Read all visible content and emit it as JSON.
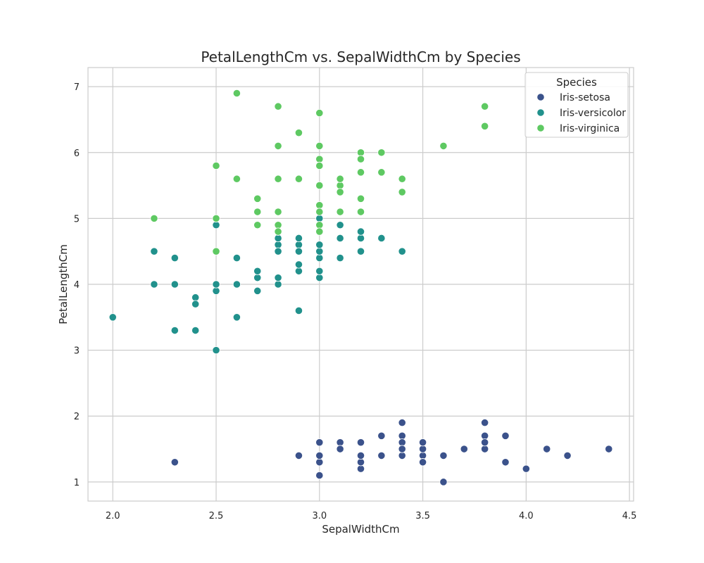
{
  "chart_data": {
    "type": "scatter",
    "title": "PetalLengthCm vs. SepalWidthCm by Species",
    "xlabel": "SepalWidthCm",
    "ylabel": "PetalLengthCm",
    "xlim": [
      1.88,
      4.52
    ],
    "ylim": [
      0.71,
      7.29
    ],
    "xticks": [
      "2.0",
      "2.5",
      "3.0",
      "3.5",
      "4.0",
      "4.5"
    ],
    "yticks": [
      "1",
      "2",
      "3",
      "4",
      "5",
      "6",
      "7"
    ],
    "grid": true,
    "legend": {
      "title": "Species",
      "placement": "top-right"
    },
    "series": [
      {
        "name": "Iris-setosa",
        "color": "#3b528b",
        "x": [
          3.5,
          3.0,
          3.2,
          3.1,
          3.6,
          3.9,
          3.4,
          3.4,
          2.9,
          3.1,
          3.7,
          3.4,
          3.0,
          3.0,
          4.0,
          4.4,
          3.9,
          3.5,
          3.8,
          3.8,
          3.4,
          3.7,
          3.6,
          3.3,
          3.4,
          3.0,
          3.4,
          3.5,
          3.4,
          3.2,
          3.1,
          3.4,
          4.1,
          4.2,
          3.1,
          3.2,
          3.5,
          3.1,
          3.0,
          3.4,
          3.5,
          2.3,
          3.2,
          3.5,
          3.8,
          3.0,
          3.8,
          3.2,
          3.7,
          3.3
        ],
        "y": [
          1.4,
          1.4,
          1.3,
          1.5,
          1.4,
          1.7,
          1.4,
          1.5,
          1.4,
          1.5,
          1.5,
          1.6,
          1.4,
          1.1,
          1.2,
          1.5,
          1.3,
          1.4,
          1.7,
          1.5,
          1.7,
          1.5,
          1.0,
          1.7,
          1.9,
          1.6,
          1.6,
          1.5,
          1.4,
          1.6,
          1.6,
          1.5,
          1.5,
          1.4,
          1.5,
          1.2,
          1.3,
          1.5,
          1.3,
          1.5,
          1.3,
          1.3,
          1.3,
          1.6,
          1.9,
          1.4,
          1.6,
          1.4,
          1.5,
          1.4
        ]
      },
      {
        "name": "Iris-versicolor",
        "color": "#21918c",
        "x": [
          3.2,
          3.2,
          3.1,
          2.3,
          2.8,
          2.8,
          3.3,
          2.4,
          2.9,
          2.7,
          2.0,
          3.0,
          2.2,
          2.9,
          2.9,
          3.1,
          3.0,
          2.7,
          2.2,
          2.5,
          3.2,
          2.8,
          2.5,
          2.8,
          2.9,
          3.0,
          2.8,
          3.0,
          2.9,
          2.6,
          2.4,
          2.4,
          2.7,
          2.7,
          3.0,
          3.4,
          3.1,
          2.3,
          3.0,
          2.5,
          2.6,
          3.0,
          2.6,
          2.3,
          2.7,
          3.0,
          2.9,
          2.9,
          2.5,
          2.8
        ],
        "y": [
          4.7,
          4.5,
          4.9,
          4.0,
          4.6,
          4.5,
          4.7,
          3.3,
          4.6,
          3.9,
          3.5,
          4.2,
          4.0,
          4.7,
          3.6,
          4.4,
          4.5,
          4.1,
          4.5,
          3.9,
          4.8,
          4.0,
          4.9,
          4.7,
          4.3,
          4.4,
          4.8,
          5.0,
          4.5,
          3.5,
          3.8,
          3.7,
          3.9,
          5.1,
          4.5,
          4.5,
          4.7,
          4.4,
          4.1,
          4.0,
          4.4,
          4.6,
          4.0,
          3.3,
          4.2,
          4.2,
          4.2,
          4.3,
          3.0,
          4.1
        ]
      },
      {
        "name": "Iris-virginica",
        "color": "#5ec962",
        "x": [
          3.3,
          2.7,
          3.0,
          2.9,
          3.0,
          3.0,
          2.5,
          2.9,
          2.5,
          3.6,
          3.2,
          2.7,
          3.0,
          2.5,
          2.8,
          3.2,
          3.0,
          3.8,
          2.6,
          2.2,
          3.2,
          2.8,
          2.8,
          2.7,
          3.3,
          3.2,
          2.8,
          3.0,
          2.8,
          3.0,
          2.8,
          3.8,
          2.8,
          2.8,
          2.6,
          3.0,
          3.4,
          3.1,
          3.0,
          3.1,
          3.1,
          3.1,
          2.7,
          3.2,
          3.3,
          3.0,
          2.5,
          3.0,
          3.4,
          3.0
        ],
        "y": [
          6.0,
          5.1,
          5.9,
          5.6,
          5.8,
          6.6,
          4.5,
          6.3,
          5.8,
          6.1,
          5.1,
          5.3,
          5.5,
          5.0,
          5.1,
          5.3,
          5.5,
          6.7,
          6.9,
          5.0,
          5.7,
          4.9,
          6.7,
          4.9,
          5.7,
          6.0,
          4.8,
          4.9,
          5.6,
          5.8,
          6.1,
          6.4,
          5.6,
          5.1,
          5.6,
          6.1,
          5.6,
          5.5,
          4.8,
          5.4,
          5.6,
          5.1,
          5.1,
          5.9,
          5.7,
          5.2,
          5.0,
          5.2,
          5.4,
          5.1
        ]
      }
    ]
  }
}
